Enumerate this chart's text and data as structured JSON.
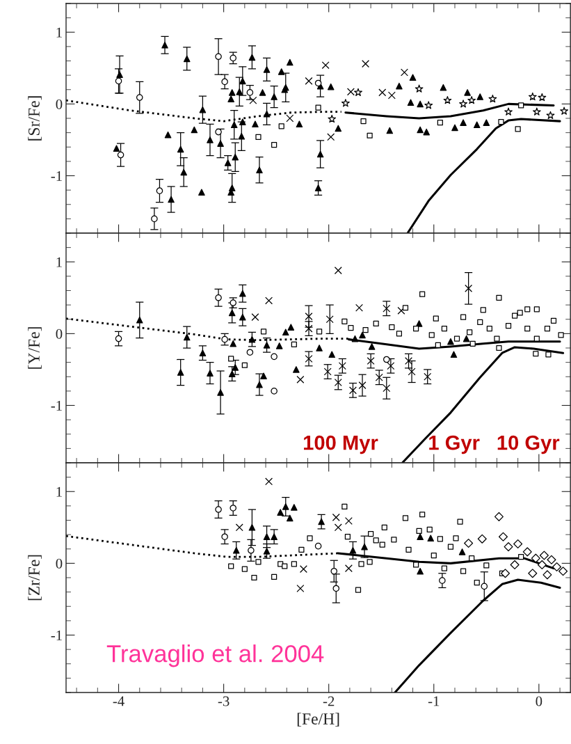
{
  "chart_data": [
    {
      "type": "scatter",
      "ylabel": "[Sr/Fe]",
      "xlim": [
        -4.5,
        0.3
      ],
      "ylim": [
        -1.8,
        1.4
      ],
      "xticks": [
        -4,
        -3,
        -2,
        -1,
        0
      ],
      "yticks": [
        -1,
        0,
        1
      ],
      "tick_labels": "y",
      "grid": false,
      "legend": false,
      "series": [
        {
          "type": "line",
          "line_style": "dotted",
          "color": "#000000",
          "x": [
            -4.5,
            -3.89,
            -3.28,
            -3.0,
            -2.67,
            -2.36,
            -2.06,
            -1.88
          ],
          "values": [
            0.05,
            -0.09,
            -0.2,
            -0.24,
            -0.17,
            -0.12,
            -0.11,
            -0.11
          ]
        },
        {
          "type": "line",
          "line_style": "solid",
          "color": "#000000",
          "x": [
            -1.84,
            -1.45,
            -1.14,
            -0.84,
            -0.53,
            -0.29,
            0.14
          ],
          "values": [
            -0.12,
            -0.17,
            -0.2,
            -0.17,
            -0.09,
            0.0,
            -0.02
          ]
        },
        {
          "type": "line",
          "line_style": "solid",
          "color": "#000000",
          "x": [
            -1.25,
            -1.05,
            -0.84,
            -0.59,
            -0.41,
            -0.29,
            -0.17,
            0.2
          ],
          "values": [
            -1.8,
            -1.35,
            -0.99,
            -0.63,
            -0.34,
            -0.23,
            -0.21,
            -0.24
          ]
        },
        {
          "marker": "triangle",
          "color": "#000000",
          "x": [
            -3.99,
            -4.02,
            -3.35,
            -3.2,
            -3.41,
            -3.38,
            -3.5,
            -3.13,
            -3.03,
            -2.9,
            -2.92,
            -2.93,
            -2.89,
            -2.85,
            -2.82,
            -2.83,
            -2.73,
            -2.59,
            -2.52,
            -2.59,
            -2.41,
            -2.66,
            -2.08,
            -2.08,
            -2.63,
            -2.28,
            -1.98,
            -1.91,
            -1.42,
            -1.33,
            -1.2,
            -0.91,
            -0.68,
            -0.56,
            -0.5,
            -0.59
          ],
          "values": [
            0.41,
            -0.62,
            0.63,
            -0.08,
            -0.63,
            -0.95,
            -1.33,
            -0.5,
            -0.55,
            -0.29,
            -1.17,
            -1.23,
            -0.74,
            0.17,
            0.32,
            -0.45,
            0.65,
            0.48,
            0.1,
            -0.14,
            0.23,
            -0.92,
            -0.7,
            0.25,
            0.16,
            -0.28,
            0.24,
            -0.34,
            -0.37,
            0.25,
            0.37,
            0.23,
            0.16,
            0.1,
            -0.26,
            -0.29
          ],
          "errors": [
            0.26,
            null,
            0.16,
            0.19,
            0.23,
            0.2,
            0.18,
            0.22,
            0.2,
            0.2,
            0.2,
            null,
            0.2,
            0.2,
            0.2,
            0.2,
            0.16,
            0.16,
            0.15,
            0.15,
            0.2,
            0.18,
            0.19,
            0.15,
            null,
            null,
            null,
            null,
            null,
            null,
            null,
            null,
            null,
            null,
            null,
            null
          ]
        },
        {
          "marker": "circle",
          "color": "#000000",
          "x": [
            -3.8,
            -3.98,
            -3.61,
            -3.66,
            -4.0,
            -3.05,
            -2.91,
            -2.99,
            -2.75,
            -3.05,
            -2.1
          ],
          "values": [
            0.09,
            -0.71,
            -1.21,
            -1.6,
            0.32,
            0.66,
            0.64,
            0.31,
            0.16,
            -0.39,
            0.29
          ],
          "errors": [
            0.22,
            0.16,
            0.16,
            0.15,
            0.17,
            0.25,
            0.08,
            0.1,
            0.1,
            null,
            null
          ]
        },
        {
          "marker": "triangle",
          "color": "#000000",
          "x": [
            -3.56,
            -3.53,
            -3.28,
            -3.21,
            -2.96,
            -2.93,
            -2.92,
            -2.82,
            -2.7,
            -2.37,
            -2.45,
            -2.42,
            -2.1,
            -1.22,
            -1.13,
            -1.13,
            -1.07,
            -0.8,
            -0.72
          ],
          "values": [
            0.82,
            -0.43,
            -0.36,
            -1.23,
            -0.82,
            0.07,
            0.16,
            -0.25,
            -0.28,
            0.58,
            0.45,
            0.2,
            -1.17,
            0.02,
            0.0,
            -0.36,
            -0.39,
            -0.33,
            -0.26
          ],
          "errors": [
            0.12,
            null,
            null,
            null,
            0.1,
            null,
            null,
            null,
            null,
            null,
            null,
            null,
            0.1,
            null,
            null,
            null,
            null,
            null,
            null
          ]
        },
        {
          "marker": "square",
          "color": "#000000",
          "x": [
            -2.67,
            -2.52,
            -2.45,
            -2.1,
            -1.67,
            -1.61,
            -0.94,
            -0.36,
            -0.2,
            -0.17
          ],
          "values": [
            -0.46,
            -0.57,
            -0.31,
            -0.05,
            -0.24,
            -0.44,
            -0.26,
            -0.25,
            -0.35,
            -0.02
          ]
        },
        {
          "marker": "star",
          "color": "#000000",
          "x": [
            -1.84,
            -1.72,
            -1.14,
            -1.05,
            -0.87,
            -0.72,
            -0.64,
            -0.44,
            -0.29,
            -0.06,
            0.03,
            -0.02,
            0.11,
            0.24,
            -1.97
          ],
          "values": [
            0.01,
            0.16,
            0.21,
            -0.02,
            0.05,
            0.0,
            0.05,
            0.07,
            -0.11,
            0.1,
            0.09,
            -0.11,
            -0.16,
            -0.1,
            -0.21
          ]
        },
        {
          "marker": "cross",
          "color": "#000000",
          "x": [
            -2.03,
            -1.65,
            -2.19,
            -1.79,
            -1.49,
            -1.4,
            -1.28,
            -1.98,
            -2.37,
            -2.72
          ],
          "values": [
            0.54,
            0.56,
            0.32,
            0.17,
            0.16,
            0.12,
            0.44,
            -0.46,
            -0.2,
            0.05
          ]
        }
      ]
    },
    {
      "type": "scatter",
      "ylabel": "[Y/Fe]",
      "xlim": [
        -4.5,
        0.3
      ],
      "ylim": [
        -1.8,
        1.4
      ],
      "xticks": [
        -4,
        -3,
        -2,
        -1,
        0
      ],
      "yticks": [
        -1,
        0,
        1
      ],
      "tick_labels": "y",
      "grid": false,
      "legend": false,
      "annotations": [
        "100 Myr",
        "1 Gyr",
        "10 Gyr"
      ],
      "series": [
        {
          "type": "line",
          "line_style": "dotted",
          "color": "#000000",
          "x": [
            -4.5,
            -3.89,
            -3.28,
            -2.97,
            -2.67,
            -2.06,
            -1.81
          ],
          "values": [
            0.21,
            0.1,
            -0.01,
            -0.08,
            -0.09,
            -0.07,
            -0.07
          ]
        },
        {
          "type": "line",
          "line_style": "solid",
          "color": "#000000",
          "x": [
            -1.81,
            -1.45,
            -1.14,
            -0.84,
            -0.53,
            -0.29,
            0.2
          ],
          "values": [
            -0.08,
            -0.15,
            -0.21,
            -0.18,
            -0.14,
            -0.11,
            -0.11
          ]
        },
        {
          "type": "line",
          "line_style": "solid",
          "color": "#000000",
          "x": [
            -1.3,
            -1.08,
            -0.84,
            -0.56,
            -0.35,
            -0.23,
            -0.05,
            0.23
          ],
          "values": [
            -1.8,
            -1.46,
            -1.1,
            -0.61,
            -0.27,
            -0.19,
            -0.21,
            -0.27
          ]
        },
        {
          "marker": "triangle",
          "color": "#000000",
          "x": [
            -3.8,
            -3.35,
            -3.41,
            -3.2,
            -3.13,
            -3.03,
            -2.82,
            -2.92,
            -2.82,
            -2.91,
            -2.89,
            -2.92,
            -2.73,
            -2.59,
            -2.66,
            -2.41,
            -1.14,
            -1.75,
            -1.68,
            -0.84,
            -0.69,
            -1.59,
            -1.97,
            -2.09,
            -2.36,
            -2.62,
            -2.31,
            -2.47,
            -0.81
          ],
          "values": [
            0.19,
            -0.05,
            -0.54,
            -0.27,
            -0.55,
            -0.82,
            0.56,
            0.29,
            0.23,
            -0.14,
            -0.47,
            -0.56,
            -0.08,
            -0.16,
            -0.71,
            0.02,
            0.14,
            -0.07,
            -0.02,
            -0.11,
            -0.07,
            -0.18,
            -0.29,
            -0.2,
            0.09,
            -0.59,
            -0.5,
            -0.17,
            -0.29
          ],
          "errors": [
            0.25,
            0.15,
            0.18,
            0.1,
            0.15,
            0.3,
            0.12,
            0.14,
            0.12,
            null,
            0.1,
            0.1,
            0.1,
            0.1,
            0.15,
            null,
            null,
            null,
            null,
            null,
            null,
            null,
            null,
            null,
            null,
            null,
            null,
            null,
            null
          ]
        },
        {
          "marker": "circle",
          "color": "#000000",
          "x": [
            -2.52,
            -2.52,
            -4.0,
            -3.05,
            -2.91,
            -2.99,
            -2.75,
            -1.45
          ],
          "values": [
            -0.8,
            -0.32,
            -0.07,
            0.5,
            0.43,
            -0.08,
            -0.26,
            -0.36
          ],
          "errors": [
            null,
            null,
            0.1,
            0.12,
            0.07,
            0.08,
            null,
            null
          ]
        },
        {
          "marker": "cross",
          "color": "#000000",
          "x": [
            -2.19,
            -2.19,
            -2.19,
            -1.99,
            -2.01,
            -1.91,
            -1.87,
            -1.77,
            -1.68,
            -1.6,
            -1.52,
            -1.45,
            -1.45,
            -1.41,
            -1.24,
            -1.21,
            -1.06,
            -0.67,
            -1.91,
            -2.57,
            -2.7,
            -1.71,
            -2.27,
            -1.31
          ],
          "values": [
            0.24,
            0.07,
            -0.35,
            0.2,
            -0.53,
            -0.68,
            -0.45,
            -0.79,
            -0.72,
            -0.38,
            -0.61,
            0.35,
            -0.76,
            -0.45,
            -0.38,
            -0.53,
            -0.6,
            0.63,
            0.88,
            0.46,
            0.23,
            0.36,
            -0.64,
            0.32
          ],
          "errors": [
            0.15,
            0.1,
            0.1,
            0.2,
            0.1,
            0.1,
            0.1,
            0.1,
            0.15,
            0.1,
            0.1,
            0.1,
            0.15,
            0.1,
            0.1,
            0.15,
            0.1,
            0.22,
            null,
            null,
            null,
            null,
            null,
            null
          ]
        },
        {
          "marker": "square",
          "color": "#000000",
          "x": [
            -1.11,
            -0.38,
            -0.53,
            -0.72,
            -0.98,
            -1.27,
            -1.85,
            -1.79,
            -2.62,
            -2.8,
            -2.93,
            -2.33,
            -2.09,
            -1.65,
            -1.55,
            -1.4,
            -1.33,
            -1.17,
            -1.02,
            -0.9,
            -0.78,
            -0.66,
            -0.56,
            -0.47,
            -0.4,
            -0.29,
            -0.23,
            -0.18,
            -0.11,
            -0.02,
            -0.11,
            -0.02,
            0.08,
            0.14,
            0.21,
            0.09,
            -0.03,
            -0.63,
            -0.38,
            -0.96
          ],
          "values": [
            0.55,
            0.5,
            0.33,
            0.23,
            0.21,
            0.36,
            0.17,
            0.08,
            0.03,
            -0.44,
            -0.35,
            -0.15,
            0.03,
            0.05,
            0.14,
            0.09,
            0.0,
            0.07,
            -0.02,
            0.07,
            -0.07,
            0.02,
            0.16,
            0.07,
            -0.07,
            0.11,
            0.25,
            0.29,
            0.34,
            0.34,
            0.07,
            -0.07,
            0.07,
            0.18,
            -0.02,
            -0.29,
            -0.28,
            -0.14,
            -0.2,
            -0.16
          ]
        }
      ]
    },
    {
      "type": "scatter",
      "xlabel": "[Fe/H]",
      "ylabel": "[Zr/Fe]",
      "xlim": [
        -4.5,
        0.3
      ],
      "ylim": [
        -1.8,
        1.4
      ],
      "xticks": [
        -4,
        -3,
        -2,
        -1,
        0
      ],
      "yticks": [
        -1,
        0,
        1
      ],
      "grid": false,
      "legend": false,
      "annotations": [
        "Travaglio et al. 2004"
      ],
      "series": [
        {
          "type": "line",
          "line_style": "dotted",
          "color": "#000000",
          "x": [
            -4.5,
            -3.89,
            -3.28,
            -2.97,
            -2.67,
            -2.36,
            -1.91
          ],
          "values": [
            0.38,
            0.26,
            0.14,
            0.09,
            0.09,
            0.11,
            0.14
          ]
        },
        {
          "type": "line",
          "line_style": "solid",
          "color": "#000000",
          "x": [
            -1.91,
            -1.45,
            -1.14,
            -0.84,
            -0.38,
            -0.14,
            0.14
          ],
          "values": [
            0.14,
            0.07,
            0.02,
            0.0,
            0.07,
            0.07,
            -0.07
          ]
        },
        {
          "type": "line",
          "line_style": "solid",
          "color": "#000000",
          "x": [
            -1.37,
            -1.14,
            -0.84,
            -0.53,
            -0.35,
            -0.2,
            0.02,
            0.2
          ],
          "values": [
            -1.8,
            -1.42,
            -0.97,
            -0.52,
            -0.29,
            -0.23,
            -0.27,
            -0.34
          ]
        },
        {
          "marker": "circle",
          "color": "#000000",
          "x": [
            -3.05,
            -2.91,
            -2.99,
            -2.74,
            -2.1,
            -1.95,
            -1.93,
            -0.92,
            -0.52
          ],
          "values": [
            0.75,
            0.77,
            0.37,
            0.18,
            0.24,
            -0.11,
            -0.35,
            -0.24,
            -0.32
          ],
          "errors": [
            0.12,
            0.1,
            0.1,
            0.15,
            null,
            0.15,
            0.2,
            0.1,
            0.2
          ]
        },
        {
          "marker": "triangle",
          "color": "#000000",
          "x": [
            -2.88,
            -2.73,
            -2.59,
            -2.59,
            -2.52,
            -2.41,
            -2.07,
            -1.77,
            -1.66,
            -2.46,
            -2.37,
            -2.33,
            -1.13,
            -1.03,
            -1.13,
            -0.73
          ],
          "values": [
            0.18,
            0.5,
            0.37,
            0.17,
            0.37,
            0.79,
            0.58,
            0.18,
            0.23,
            0.71,
            0.63,
            0.78,
            0.37,
            0.35,
            -0.11,
            0.16
          ],
          "errors": [
            0.12,
            0.25,
            0.15,
            0.1,
            0.1,
            0.13,
            0.1,
            0.12,
            0.15,
            null,
            null,
            null,
            null,
            null,
            null,
            null
          ]
        },
        {
          "marker": "square",
          "color": "#000000",
          "x": [
            -2.67,
            -2.52,
            -2.46,
            -1.61,
            -1.14,
            -0.94,
            -0.17,
            -0.35,
            -1.85,
            -2.93,
            -2.8,
            -2.71,
            -2.42,
            -2.33,
            -2.26,
            -2.18,
            -1.82,
            -1.72,
            -1.69,
            -1.6,
            -1.47,
            -1.55,
            -1.49,
            -1.38,
            -1.27,
            -1.11,
            -0.75,
            -1.04,
            -1.24,
            -1.17,
            -1.0,
            -0.84,
            -0.79,
            -0.64,
            -0.59,
            -0.5,
            -0.72,
            -0.9
          ],
          "values": [
            0.02,
            -0.19,
            -0.01,
            0.02,
            0.45,
            0.34,
            0.09,
            -0.14,
            0.79,
            -0.04,
            -0.08,
            -0.2,
            -0.04,
            -0.01,
            0.19,
            0.35,
            0.37,
            -0.37,
            -0.01,
            0.41,
            0.5,
            0.32,
            0.26,
            0.33,
            0.63,
            0.68,
            0.58,
            0.47,
            0.19,
            -0.02,
            0.11,
            0.23,
            0.35,
            0.07,
            -0.27,
            -0.03,
            -0.11,
            -0.07
          ]
        },
        {
          "marker": "diamond",
          "color": "#000000",
          "x": [
            -0.38,
            -0.54,
            -0.34,
            -0.29,
            -0.2,
            -0.11,
            -0.03,
            0.05,
            0.12,
            0.17,
            0.23,
            0.03,
            -0.06,
            -0.23,
            -0.32,
            0.08,
            -0.67
          ],
          "values": [
            0.65,
            0.34,
            0.37,
            0.23,
            0.27,
            0.16,
            0.07,
            0.11,
            0.05,
            -0.05,
            -0.11,
            -0.02,
            -0.14,
            -0.02,
            -0.14,
            -0.16,
            0.28
          ]
        },
        {
          "marker": "cross",
          "color": "#000000",
          "x": [
            -2.57,
            -2.85,
            -1.93,
            -1.81,
            -1.91,
            -2.27,
            -2.24,
            -1.81
          ],
          "values": [
            1.14,
            0.5,
            0.64,
            0.59,
            0.5,
            -0.35,
            -0.08,
            -0.07
          ]
        }
      ]
    }
  ]
}
